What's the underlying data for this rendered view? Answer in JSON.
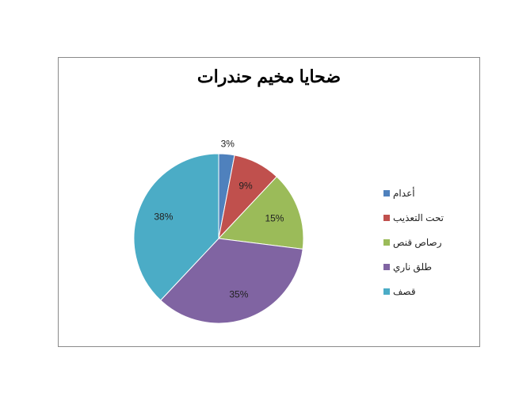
{
  "chart_data": {
    "type": "pie",
    "title": "ضحايا مخيم حندرات",
    "categories": [
      "أعدام",
      "تحت التعذيب",
      "رصاص قنص",
      "طلق ناري",
      "قصف"
    ],
    "values": [
      3,
      9,
      15,
      35,
      38
    ],
    "labels": [
      "3%",
      "9%",
      "15%",
      "35%",
      "38%"
    ],
    "colors": [
      "#4F81BD",
      "#C0504D",
      "#9BBB59",
      "#8064A2",
      "#4BACC6"
    ],
    "legend_position": "right",
    "start": "top-clockwise"
  }
}
